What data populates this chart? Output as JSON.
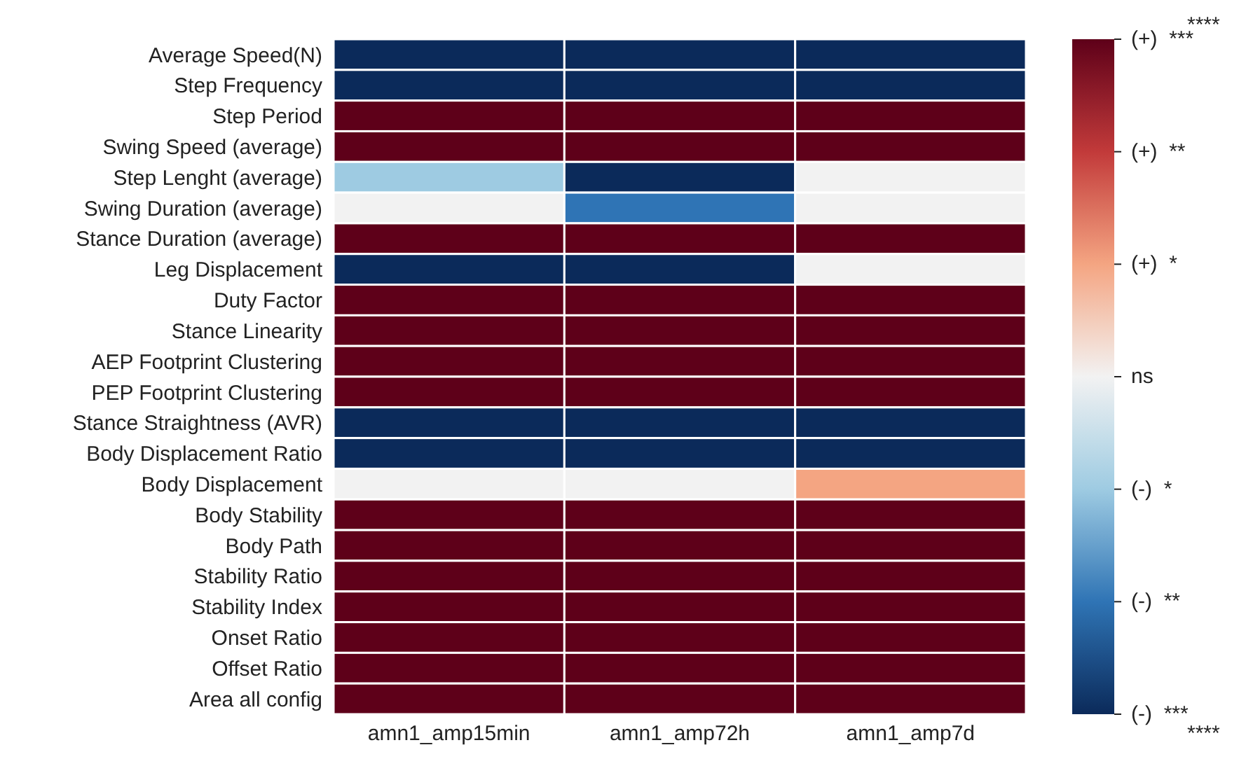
{
  "chart_data": {
    "type": "heatmap",
    "categories": [
      "amn1_amp15min",
      "amn1_amp72h",
      "amn1_amp7d"
    ],
    "y_categories": [
      "Average Speed(N)",
      "Step Frequency",
      "Step Period",
      "Swing Speed (average)",
      "Step Lenght (average)",
      "Swing Duration (average)",
      "Stance Duration (average)",
      "Leg Displacement",
      "Duty Factor",
      "Stance Linearity",
      "AEP Footprint Clustering",
      "PEP Footprint Clustering",
      "Stance Straightness (AVR)",
      "Body Displacement Ratio",
      "Body Displacement",
      "Body Stability",
      "Body Path",
      "Stability Ratio",
      "Stability Index",
      "Onset Ratio",
      "Offset Ratio",
      "Area all config"
    ],
    "cells": [
      [
        -3,
        -3,
        -3
      ],
      [
        -3,
        -3,
        -3
      ],
      [
        3,
        3,
        3
      ],
      [
        3,
        3,
        3
      ],
      [
        -1,
        -3,
        0
      ],
      [
        0,
        -2,
        0
      ],
      [
        3,
        3,
        3
      ],
      [
        -3,
        -3,
        0
      ],
      [
        3,
        3,
        3
      ],
      [
        3,
        3,
        3
      ],
      [
        3,
        3,
        3
      ],
      [
        3,
        3,
        3
      ],
      [
        -3,
        -3,
        -3
      ],
      [
        -3,
        -3,
        -3
      ],
      [
        0,
        0,
        1
      ],
      [
        3,
        3,
        3
      ],
      [
        3,
        3,
        3
      ],
      [
        3,
        3,
        3
      ],
      [
        3,
        3,
        3
      ],
      [
        3,
        3,
        3
      ],
      [
        3,
        3,
        3
      ],
      [
        3,
        3,
        3
      ]
    ],
    "clim": [
      -3,
      3
    ],
    "cticks": [
      {
        "value": 3,
        "label": "(+)  ***"
      },
      {
        "value": 2,
        "label": "(+)  **"
      },
      {
        "value": 1,
        "label": "(+)  *"
      },
      {
        "value": 0,
        "label": "ns"
      },
      {
        "value": -1,
        "label": "(-)  *"
      },
      {
        "value": -2,
        "label": "(-)  **"
      },
      {
        "value": -3,
        "label": "(-)  ***"
      }
    ],
    "annotations": [
      "****",
      "****"
    ]
  }
}
